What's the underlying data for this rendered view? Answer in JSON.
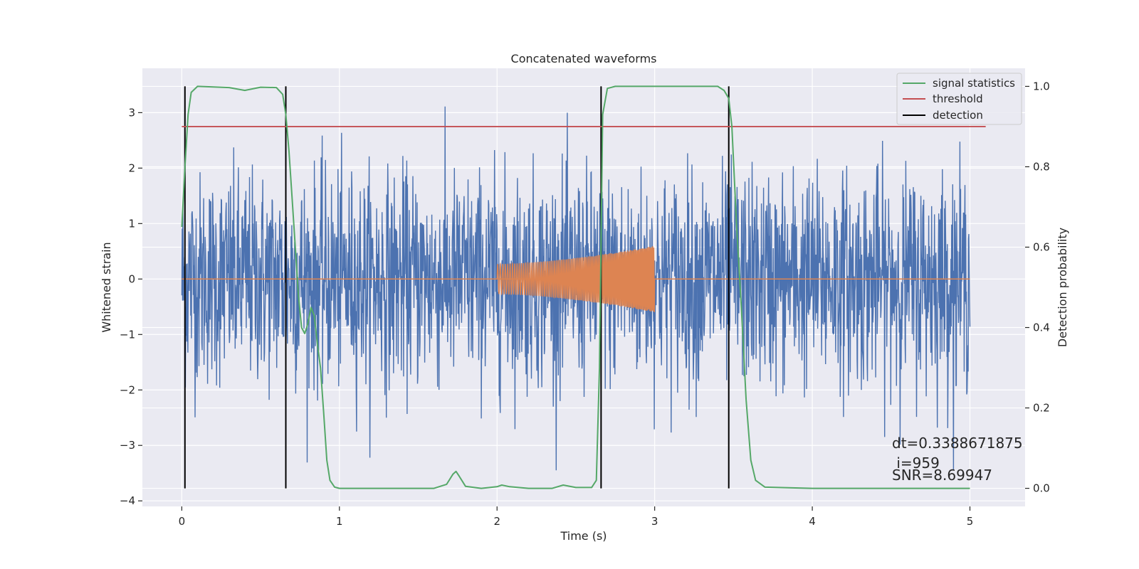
{
  "chart_data": {
    "type": "line",
    "title": "Concatenated waveforms",
    "xlabel": "Time (s)",
    "ylabel": "Whitened strain",
    "y2label": "Detection probability",
    "xlim": [
      -0.25,
      5.35
    ],
    "ylim": [
      -4.1,
      3.8
    ],
    "y2lim": [
      -0.045,
      1.045
    ],
    "x_ticks": [
      0,
      1,
      2,
      3,
      4,
      5
    ],
    "x_tick_labels": [
      "0",
      "1",
      "2",
      "3",
      "4",
      "5"
    ],
    "y_ticks": [
      3,
      2,
      1,
      0,
      -1,
      -2,
      -3,
      -4
    ],
    "y_tick_labels": [
      "3",
      "2",
      "1",
      "0",
      "−1",
      "−2",
      "−3",
      "−4"
    ],
    "y2_ticks": [
      1.0,
      0.8,
      0.6,
      0.4,
      0.2,
      0.0
    ],
    "y2_tick_labels": [
      "1.0",
      "0.8",
      "0.6",
      "0.4",
      "0.2",
      "0.0"
    ],
    "grid": true,
    "legend_position": "top-right",
    "colors": {
      "strain": "#4c72b0",
      "injection": "#dd8452",
      "signal_statistics": "#55a868",
      "threshold": "#c44e52",
      "detection": "#000000",
      "background": "#eaeaf2",
      "grid": "#ffffff"
    },
    "series": [
      {
        "name": "signal statistics",
        "axis": "right",
        "x": [
          0.0,
          0.02,
          0.04,
          0.06,
          0.1,
          0.3,
          0.4,
          0.5,
          0.6,
          0.64,
          0.66,
          0.68,
          0.7,
          0.72,
          0.74,
          0.76,
          0.78,
          0.8,
          0.82,
          0.84,
          0.86,
          0.88,
          0.9,
          0.92,
          0.94,
          0.97,
          1.0,
          1.6,
          1.68,
          1.72,
          1.74,
          1.76,
          1.8,
          1.9,
          2.0,
          2.03,
          2.08,
          2.2,
          2.35,
          2.42,
          2.5,
          2.6,
          2.63,
          2.65,
          2.67,
          2.7,
          2.75,
          3.0,
          3.4,
          3.44,
          3.47,
          3.49,
          3.52,
          3.55,
          3.58,
          3.61,
          3.64,
          3.7,
          4.0,
          5.0
        ],
        "values": [
          0.65,
          0.8,
          0.93,
          0.985,
          1.0,
          0.997,
          0.99,
          0.998,
          0.997,
          0.98,
          0.93,
          0.84,
          0.72,
          0.6,
          0.48,
          0.4,
          0.385,
          0.41,
          0.45,
          0.43,
          0.36,
          0.3,
          0.19,
          0.07,
          0.02,
          0.003,
          0.0,
          0.0,
          0.01,
          0.035,
          0.042,
          0.03,
          0.005,
          0.0,
          0.004,
          0.008,
          0.004,
          0.0,
          0.0,
          0.008,
          0.002,
          0.002,
          0.02,
          0.3,
          0.93,
          0.995,
          1.0,
          1.0,
          1.0,
          0.99,
          0.97,
          0.9,
          0.65,
          0.45,
          0.22,
          0.07,
          0.02,
          0.003,
          0.0,
          0.0
        ]
      },
      {
        "name": "threshold",
        "axis": "right",
        "x": [
          0.0,
          5.1
        ],
        "values": [
          0.9,
          0.9
        ]
      },
      {
        "name": "detection",
        "axis": "right",
        "x": [
          0.02,
          0.66,
          2.66,
          3.47
        ],
        "values": [
          1.0,
          1.0,
          1.0,
          1.0
        ]
      },
      {
        "axis": "left",
        "x_range": [
          0.0,
          5.0
        ],
        "noise_amplitude": 3.45
      },
      {
        "axis": "left",
        "x_range": [
          2.0,
          3.0
        ],
        "amplitude_start": 0.27,
        "amplitude_end": 0.6
      }
    ],
    "annotations": [
      "dt=0.3388671875",
      " i=959",
      "SNR=8.69947"
    ]
  },
  "legend": {
    "items": [
      "signal statistics",
      "threshold",
      "detection"
    ]
  }
}
